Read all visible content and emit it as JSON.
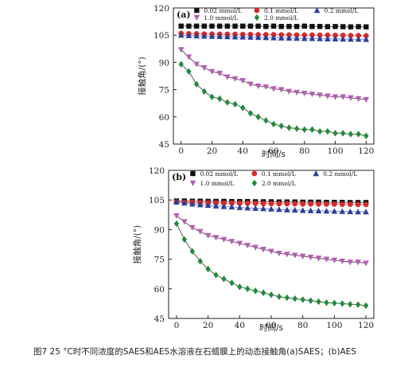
{
  "caption": "图7 25 °C时不同浓度的SAES和AES水溶液在石蜡膜上的动态接触角(a)SAES；(b)AES",
  "colors": {
    "c002": "#111111",
    "c01": "#d62c2c",
    "c02": "#2a3f9a",
    "c10": "#b85cb8",
    "c20": "#1f8c3a",
    "fit": "#555555"
  },
  "chart_data": [
    {
      "type": "scatter",
      "panel": "(a)",
      "ylabel": "接触角/(°)",
      "xlabel": "时间/s",
      "xlim": [
        -5,
        125
      ],
      "ylim": [
        45,
        120
      ],
      "xticks": [
        0,
        20,
        40,
        60,
        80,
        100,
        120
      ],
      "yticks": [
        45,
        60,
        75,
        90,
        105,
        120
      ],
      "series": [
        {
          "name": "0.02 mmol/L",
          "marker": "square",
          "color": "#111111",
          "x": [
            0,
            5,
            10,
            15,
            20,
            25,
            30,
            35,
            40,
            45,
            50,
            55,
            60,
            65,
            70,
            75,
            80,
            85,
            90,
            95,
            100,
            105,
            110,
            115,
            120
          ],
          "y": [
            110,
            110,
            110,
            110,
            110,
            110,
            110,
            110,
            110,
            110,
            110,
            109.8,
            110,
            109.8,
            109.8,
            109.8,
            110,
            109.8,
            109.8,
            109.7,
            109.8,
            109.7,
            109.6,
            109.7,
            109.6
          ]
        },
        {
          "name": "0.1 mmol/L",
          "marker": "circle",
          "color": "#d62c2c",
          "x": [
            0,
            5,
            10,
            15,
            20,
            25,
            30,
            35,
            40,
            45,
            50,
            55,
            60,
            65,
            70,
            75,
            80,
            85,
            90,
            95,
            100,
            105,
            110,
            115,
            120
          ],
          "y": [
            106,
            105.8,
            105.8,
            105.6,
            105.6,
            105.5,
            105.5,
            105.5,
            105.4,
            105.4,
            105.3,
            105.3,
            105.3,
            105.2,
            105.2,
            105.1,
            105.1,
            105.1,
            105.0,
            105.0,
            104.9,
            104.9,
            104.8,
            104.8,
            104.7
          ]
        },
        {
          "name": "0.2 mmol/L",
          "marker": "triangle-up",
          "color": "#2a3f9a",
          "x": [
            0,
            5,
            10,
            15,
            20,
            25,
            30,
            35,
            40,
            45,
            50,
            55,
            60,
            65,
            70,
            75,
            80,
            85,
            90,
            95,
            100,
            105,
            110,
            115,
            120
          ],
          "y": [
            105,
            104.8,
            104.6,
            104.5,
            104.4,
            104.3,
            104.2,
            104.1,
            104.0,
            103.9,
            103.8,
            103.7,
            103.6,
            103.5,
            103.4,
            103.3,
            103.2,
            103.2,
            103.1,
            103.0,
            103.0,
            102.9,
            102.8,
            102.8,
            102.7
          ]
        },
        {
          "name": "1.0 mmol/L",
          "marker": "triangle-down",
          "color": "#b85cb8",
          "x": [
            0,
            5,
            10,
            15,
            20,
            25,
            30,
            35,
            40,
            45,
            50,
            55,
            60,
            65,
            70,
            75,
            80,
            85,
            90,
            95,
            100,
            105,
            110,
            115,
            120
          ],
          "y": [
            97,
            93,
            89,
            87,
            85,
            84,
            82,
            81,
            80,
            78,
            77,
            76.5,
            75.5,
            75,
            74,
            73.5,
            73,
            72.5,
            72,
            71.5,
            71,
            71,
            70.5,
            70,
            69.5
          ]
        },
        {
          "name": "2.0 mmol/L",
          "marker": "diamond",
          "color": "#1f8c3a",
          "x": [
            0,
            5,
            10,
            15,
            20,
            25,
            30,
            35,
            40,
            45,
            50,
            55,
            60,
            65,
            70,
            75,
            80,
            85,
            90,
            95,
            100,
            105,
            110,
            115,
            120
          ],
          "y": [
            89,
            85,
            78,
            74,
            71,
            70,
            68,
            67,
            65,
            62,
            60,
            58,
            56,
            55,
            54,
            53.5,
            53,
            53,
            52,
            52,
            51,
            51,
            50.5,
            50.5,
            49.5
          ]
        }
      ]
    },
    {
      "type": "scatter",
      "panel": "(b)",
      "ylabel": "接触角/(°)",
      "xlabel": "时间/s",
      "xlim": [
        -5,
        125
      ],
      "ylim": [
        45,
        120
      ],
      "xticks": [
        0,
        20,
        40,
        60,
        80,
        100,
        120
      ],
      "yticks": [
        45,
        60,
        75,
        90,
        105,
        120
      ],
      "series": [
        {
          "name": "0.02 mmol/L",
          "marker": "square",
          "color": "#111111",
          "x": [
            0,
            5,
            10,
            15,
            20,
            25,
            30,
            35,
            40,
            45,
            50,
            55,
            60,
            65,
            70,
            75,
            80,
            85,
            90,
            95,
            100,
            105,
            110,
            115,
            120
          ],
          "y": [
            104.5,
            104.5,
            104.4,
            104.4,
            104.3,
            104.3,
            104.3,
            104.2,
            104.2,
            104.2,
            104.1,
            104.1,
            104.1,
            104.0,
            104.0,
            104.0,
            103.9,
            103.9,
            103.9,
            103.8,
            103.8,
            103.8,
            103.7,
            103.7,
            103.7
          ]
        },
        {
          "name": "0.1 mmol/L",
          "marker": "circle",
          "color": "#d62c2c",
          "x": [
            0,
            5,
            10,
            15,
            20,
            25,
            30,
            35,
            40,
            45,
            50,
            55,
            60,
            65,
            70,
            75,
            80,
            85,
            90,
            95,
            100,
            105,
            110,
            115,
            120
          ],
          "y": [
            104,
            103.8,
            103.8,
            103.6,
            103.5,
            103.5,
            103.4,
            103.4,
            103.3,
            103.3,
            103.3,
            103.2,
            103.2,
            103.1,
            103.1,
            103.1,
            103.0,
            103.0,
            102.9,
            102.9,
            102.9,
            102.8,
            102.8,
            102.7,
            102.7
          ]
        },
        {
          "name": "0.2 mmol/L",
          "marker": "triangle-up",
          "color": "#2a3f9a",
          "x": [
            0,
            5,
            10,
            15,
            20,
            25,
            30,
            35,
            40,
            45,
            50,
            55,
            60,
            65,
            70,
            75,
            80,
            85,
            90,
            95,
            100,
            105,
            110,
            115,
            120
          ],
          "y": [
            104,
            103.5,
            103,
            102.6,
            102.3,
            102,
            101.7,
            101.5,
            101.2,
            101,
            100.8,
            100.6,
            100.4,
            100.2,
            100.0,
            99.9,
            99.7,
            99.6,
            99.5,
            99.4,
            99.3,
            99.2,
            99.1,
            99.0,
            99.0
          ]
        },
        {
          "name": "1.0 mmol/L",
          "marker": "triangle-down",
          "color": "#b85cb8",
          "x": [
            0,
            5,
            10,
            15,
            20,
            25,
            30,
            35,
            40,
            45,
            50,
            55,
            60,
            65,
            70,
            75,
            80,
            85,
            90,
            95,
            100,
            105,
            110,
            115,
            120
          ],
          "y": [
            97,
            94,
            91,
            89,
            87,
            86,
            85,
            84,
            83,
            82,
            81,
            80,
            79,
            78,
            77.5,
            77,
            76.5,
            76,
            75.5,
            75,
            74.5,
            74,
            73.5,
            73.5,
            73
          ]
        },
        {
          "name": "2.0 mmol/L",
          "marker": "diamond",
          "color": "#1f8c3a",
          "x": [
            0,
            5,
            10,
            15,
            20,
            25,
            30,
            35,
            40,
            45,
            50,
            55,
            60,
            65,
            70,
            75,
            80,
            85,
            90,
            95,
            100,
            105,
            110,
            115,
            120
          ],
          "y": [
            93,
            85,
            79,
            74,
            70,
            67,
            65,
            63,
            61,
            60,
            59,
            58,
            57,
            56,
            55.5,
            55,
            54.5,
            54,
            53.5,
            53,
            52.8,
            52.5,
            52.2,
            52,
            51.5
          ]
        }
      ]
    }
  ]
}
